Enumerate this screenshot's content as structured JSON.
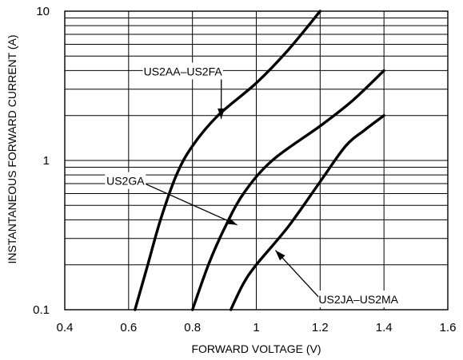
{
  "chart_data": {
    "type": "line",
    "xlabel": "FORWARD VOLTAGE (V)",
    "ylabel": "INSTANTANEOUS FORWARD CURRENT (A)",
    "xlim": [
      0.4,
      1.6
    ],
    "ylim": [
      0.1,
      10
    ],
    "yscale": "log",
    "grid": true,
    "x_ticks": [
      0.4,
      0.6,
      0.8,
      1,
      1.2,
      1.4,
      1.6
    ],
    "x_tick_labels": [
      "0.4",
      "0.6",
      "0.8",
      "1",
      "1.2",
      "1.4",
      "1.6"
    ],
    "y_tick_labels": [
      {
        "value": 0.1,
        "label": "0.1"
      },
      {
        "value": 1,
        "label": "1"
      },
      {
        "value": 10,
        "label": "10"
      }
    ],
    "series": [
      {
        "name": "US2AA–US2FA",
        "points": [
          [
            0.62,
            0.1
          ],
          [
            0.66,
            0.2
          ],
          [
            0.7,
            0.4
          ],
          [
            0.75,
            0.8
          ],
          [
            0.8,
            1.25
          ],
          [
            0.88,
            2.0
          ],
          [
            1.0,
            3.3
          ],
          [
            1.1,
            5.5
          ],
          [
            1.2,
            10
          ]
        ]
      },
      {
        "name": "US2GA",
        "points": [
          [
            0.8,
            0.1
          ],
          [
            0.85,
            0.2
          ],
          [
            0.9,
            0.35
          ],
          [
            0.96,
            0.6
          ],
          [
            1.05,
            1.0
          ],
          [
            1.2,
            1.7
          ],
          [
            1.3,
            2.5
          ],
          [
            1.4,
            4.0
          ]
        ]
      },
      {
        "name": "US2JA–US2MA",
        "points": [
          [
            0.92,
            0.1
          ],
          [
            0.96,
            0.15
          ],
          [
            1.0,
            0.2
          ],
          [
            1.1,
            0.36
          ],
          [
            1.2,
            0.72
          ],
          [
            1.28,
            1.25
          ],
          [
            1.34,
            1.6
          ],
          [
            1.4,
            2.0
          ]
        ]
      }
    ],
    "annotations": [
      {
        "text": "US2AA–US2FA",
        "series": 0,
        "anchor": [
          0.77,
          3.9
        ],
        "arrow_to": [
          0.89,
          1.9
        ]
      },
      {
        "text": "US2GA",
        "series": 1,
        "anchor": [
          0.59,
          0.72
        ],
        "arrow_to": [
          0.94,
          0.37
        ]
      },
      {
        "text": "US2JA–US2MA",
        "series": 2,
        "anchor": [
          1.32,
          0.116
        ],
        "arrow_to": [
          1.06,
          0.25
        ]
      }
    ]
  }
}
